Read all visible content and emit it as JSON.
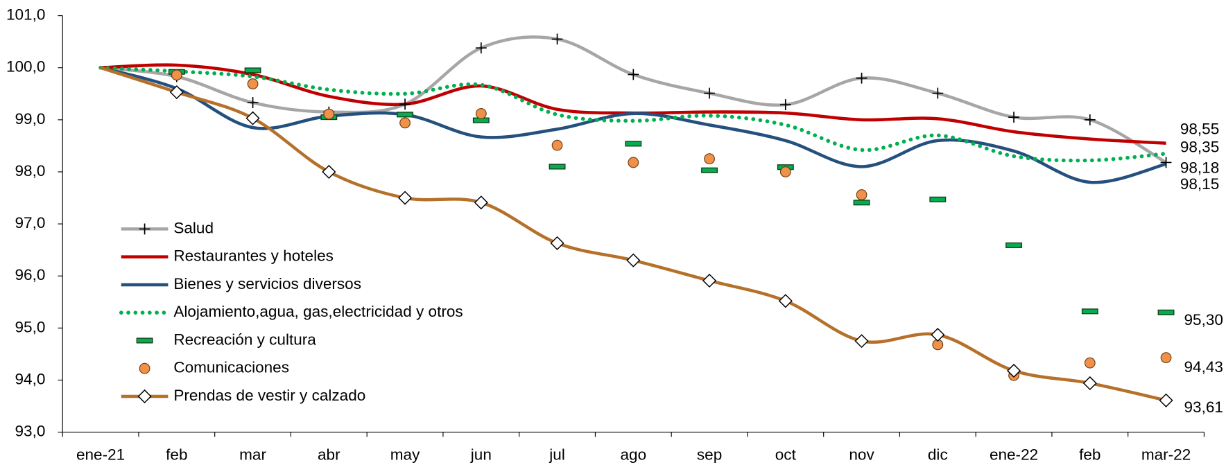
{
  "chart_data": {
    "type": "line",
    "categories": [
      "ene-21",
      "feb",
      "mar",
      "abr",
      "may",
      "jun",
      "jul",
      "ago",
      "sep",
      "oct",
      "nov",
      "dic",
      "ene-22",
      "feb",
      "mar-22"
    ],
    "ylim": [
      93,
      101
    ],
    "yticks": [
      {
        "value": 93,
        "label": "93,0"
      },
      {
        "value": 94,
        "label": "94,0"
      },
      {
        "value": 95,
        "label": "95,0"
      },
      {
        "value": 96,
        "label": "96,0"
      },
      {
        "value": 97,
        "label": "97,0"
      },
      {
        "value": 98,
        "label": "98,0"
      },
      {
        "value": 99,
        "label": "99,0"
      },
      {
        "value": 100,
        "label": "100,0"
      },
      {
        "value": 101,
        "label": "101,0"
      }
    ],
    "grid": false,
    "legend": "left",
    "series": [
      {
        "name": "Salud",
        "color": "#a6a6a6",
        "line": "solid",
        "marker": "plus",
        "label_color": "#000000",
        "values": [
          100,
          99.83,
          99.33,
          99.15,
          99.3,
          100.38,
          100.55,
          99.87,
          99.51,
          99.29,
          99.8,
          99.51,
          99.05,
          99.0,
          98.18
        ],
        "value_labels": [
          null,
          null,
          null,
          null,
          null,
          null,
          null,
          null,
          null,
          null,
          null,
          null,
          null,
          null,
          "98,18"
        ]
      },
      {
        "name": "Restaurantes y hoteles",
        "color": "#c00000",
        "line": "solid",
        "marker": "none",
        "label_color": "#e00000",
        "values": [
          100,
          100.05,
          99.87,
          99.45,
          99.3,
          99.65,
          99.2,
          99.13,
          99.15,
          99.13,
          99.0,
          99.02,
          98.77,
          98.63,
          98.55
        ],
        "value_labels": [
          null,
          null,
          null,
          null,
          null,
          null,
          null,
          null,
          null,
          null,
          null,
          null,
          null,
          null,
          "98,55"
        ]
      },
      {
        "name": "Bienes y servicios diversos",
        "color": "#24507e",
        "line": "solid",
        "marker": "none",
        "label_color": "#1f6fc0",
        "values": [
          100,
          99.6,
          98.85,
          99.07,
          99.1,
          98.67,
          98.82,
          99.12,
          98.9,
          98.6,
          98.1,
          98.6,
          98.4,
          97.8,
          98.15
        ],
        "value_labels": [
          null,
          null,
          null,
          null,
          null,
          null,
          null,
          null,
          null,
          null,
          null,
          null,
          null,
          null,
          "98,15"
        ]
      },
      {
        "name": "Alojamiento,agua, gas,electricidad y otros",
        "color": "#00b050",
        "line": "dotted",
        "marker": "none",
        "label_color": "#00b050",
        "values": [
          100,
          99.93,
          99.83,
          99.58,
          99.5,
          99.67,
          99.1,
          98.98,
          99.08,
          98.9,
          98.42,
          98.7,
          98.3,
          98.22,
          98.35
        ],
        "value_labels": [
          null,
          null,
          null,
          null,
          null,
          null,
          null,
          null,
          null,
          null,
          null,
          null,
          null,
          null,
          "98,35"
        ]
      },
      {
        "name": "Recreación y cultura",
        "color": "#00b050",
        "line": "none",
        "marker": "dash",
        "label_color": "#000000",
        "values": [
          100,
          99.92,
          99.95,
          99.05,
          99.1,
          98.99,
          98.1,
          98.54,
          98.03,
          98.09,
          97.41,
          97.47,
          96.59,
          95.32,
          95.3
        ],
        "value_labels": [
          null,
          null,
          null,
          null,
          null,
          null,
          null,
          null,
          null,
          null,
          null,
          null,
          null,
          null,
          "95,30"
        ]
      },
      {
        "name": "Comunicaciones",
        "color": "#f0914a",
        "line": "none",
        "marker": "circle",
        "label_color": "#b5561a",
        "values": [
          100,
          99.86,
          99.69,
          99.11,
          98.94,
          99.12,
          98.51,
          98.18,
          98.25,
          98.0,
          97.56,
          94.68,
          94.09,
          94.33,
          94.43
        ],
        "value_labels": [
          null,
          null,
          null,
          null,
          null,
          null,
          null,
          null,
          null,
          null,
          null,
          null,
          null,
          null,
          "94,43"
        ]
      },
      {
        "name": "Prendas de vestir y calzado",
        "color": "#b5702a",
        "line": "solid",
        "marker": "diamond",
        "label_color": "#000000",
        "values": [
          100,
          99.53,
          99.03,
          98.0,
          97.5,
          97.41,
          96.63,
          96.3,
          95.91,
          95.52,
          94.75,
          94.87,
          94.18,
          93.94,
          93.61
        ],
        "value_labels": [
          null,
          null,
          null,
          null,
          null,
          null,
          null,
          null,
          null,
          null,
          null,
          null,
          null,
          null,
          "93,61"
        ]
      }
    ]
  }
}
